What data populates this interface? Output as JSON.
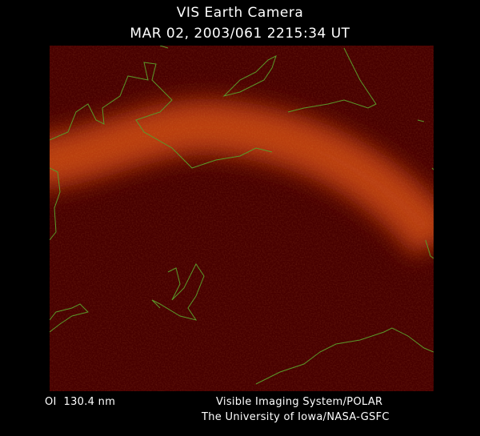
{
  "header": {
    "title": "VIS Earth Camera",
    "timestamp": "MAR 02, 2003/061 2215:34 UT"
  },
  "footer": {
    "filter": "OI  130.4 nm",
    "instrument": "Visible Imaging System/POLAR",
    "institution": "The University of Iowa/NASA-GSFC"
  }
}
